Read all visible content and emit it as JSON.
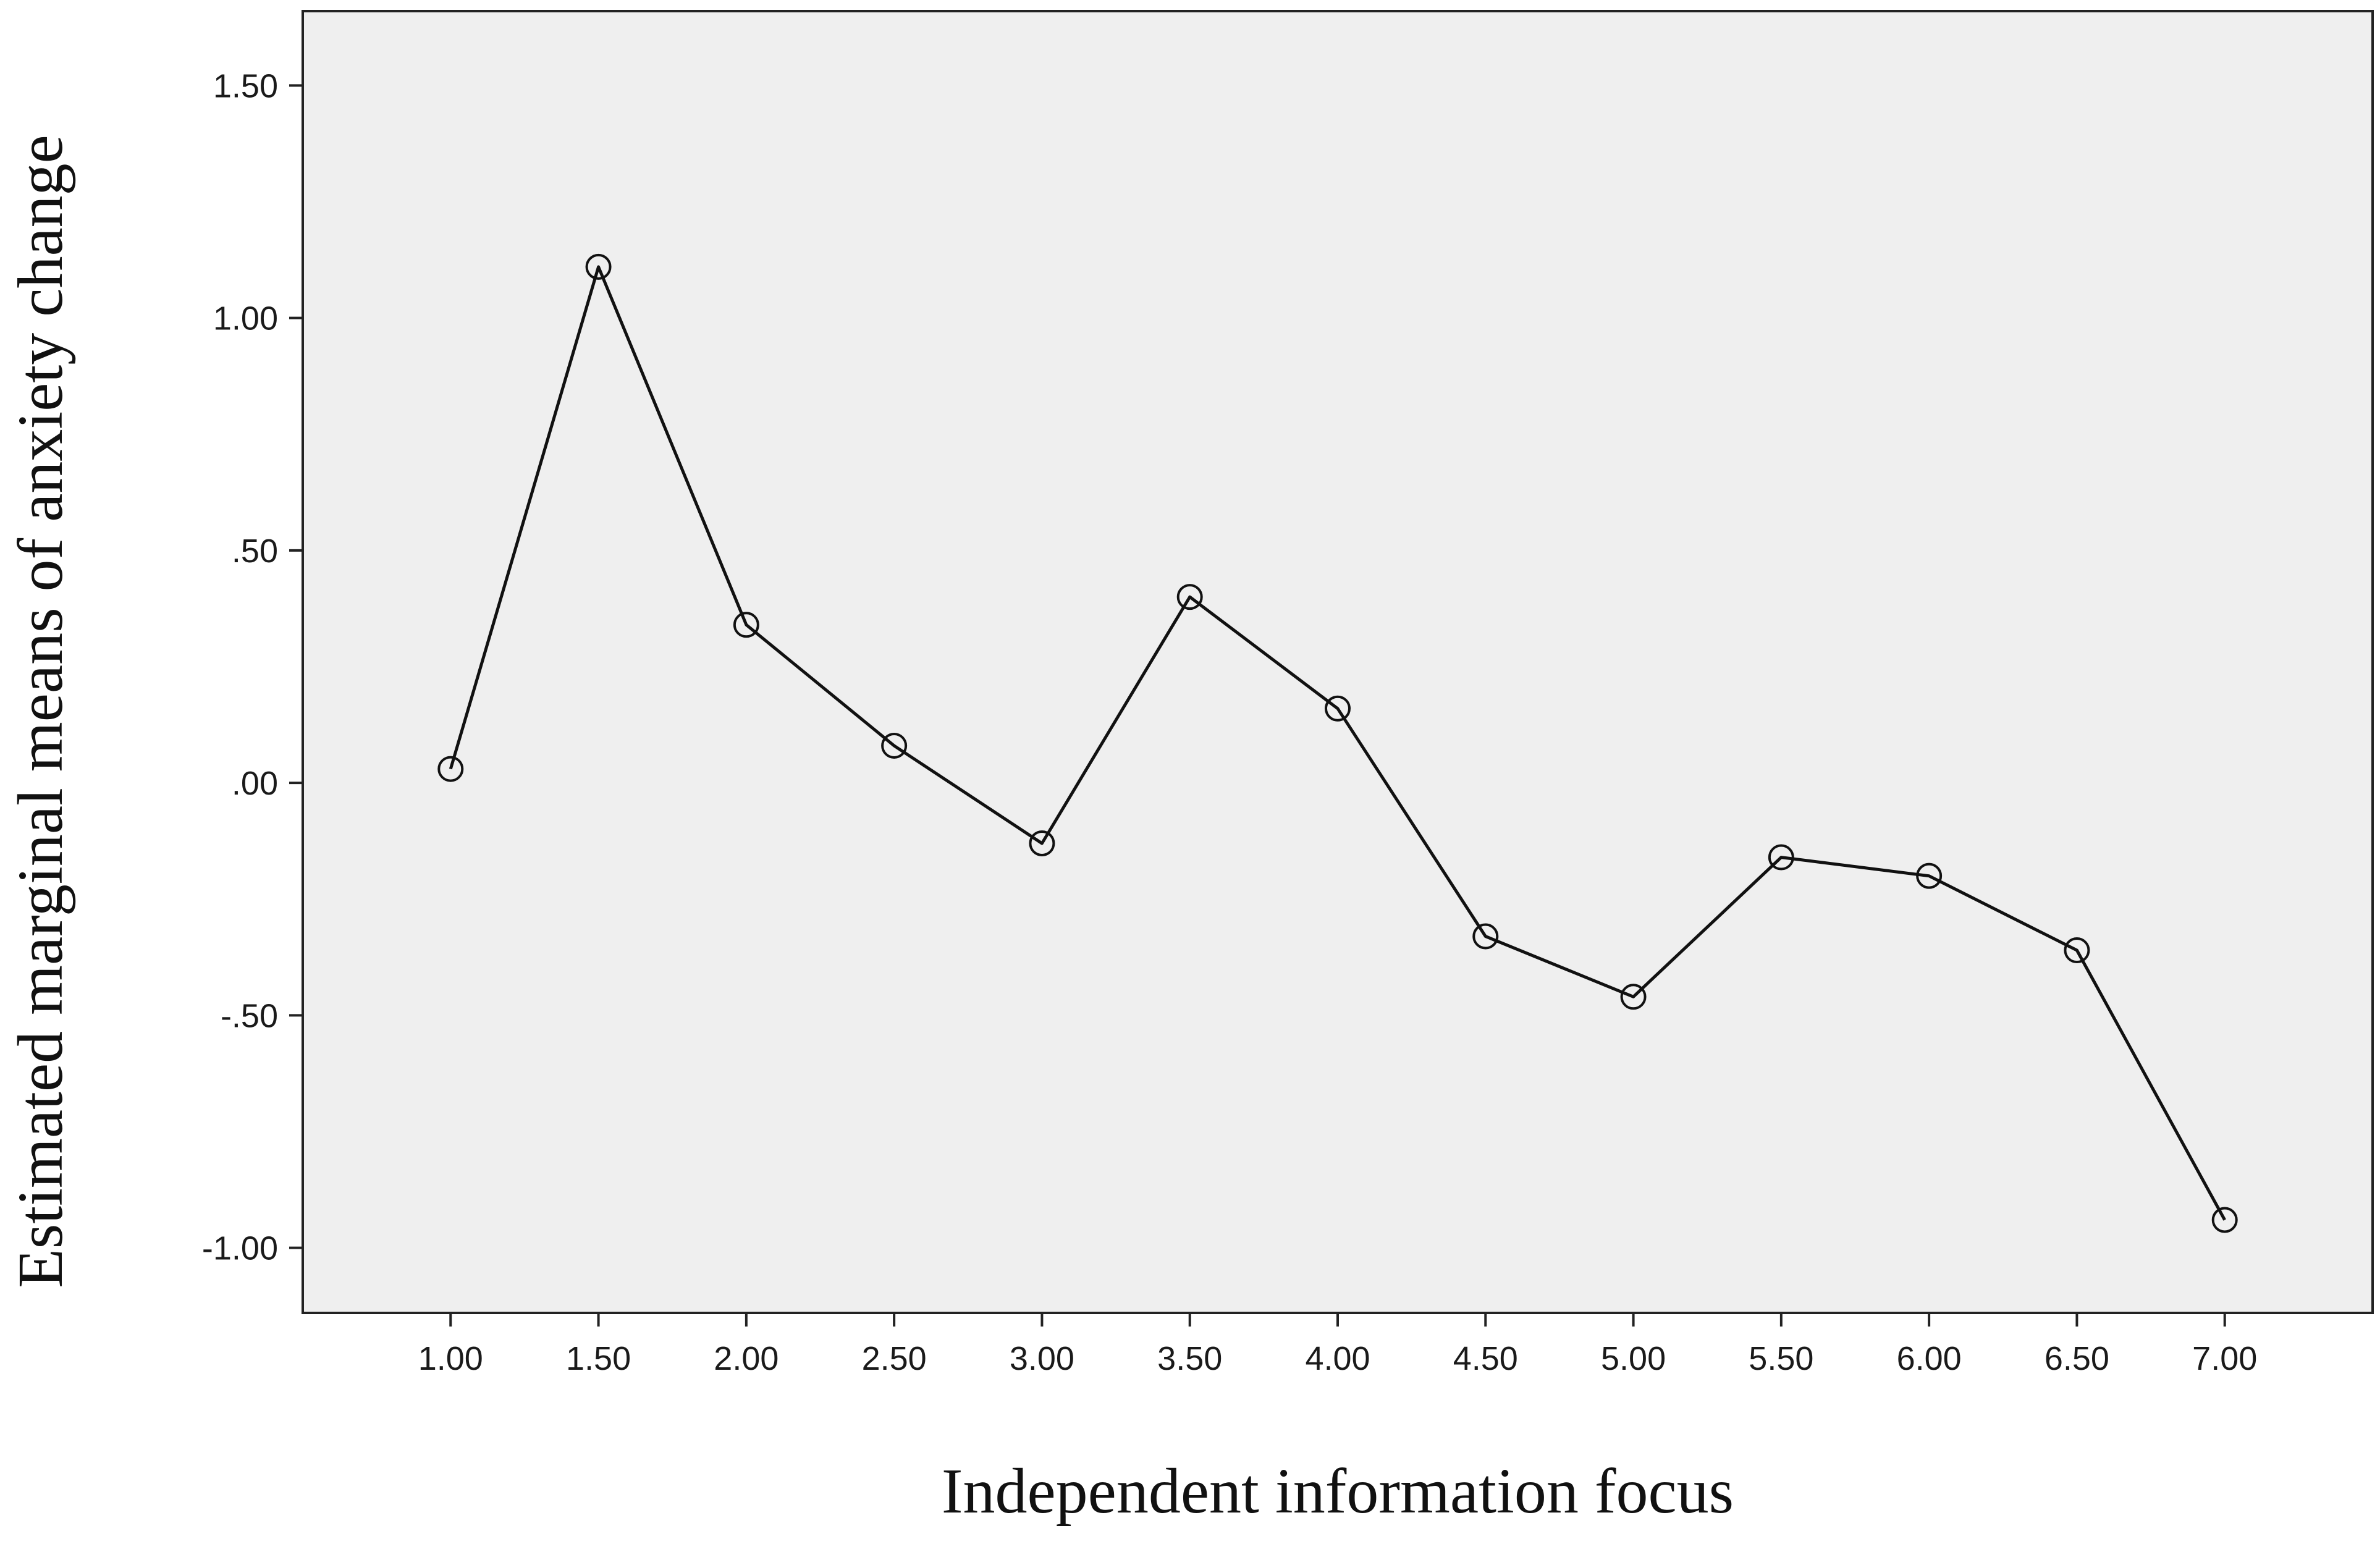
{
  "chart_data": {
    "type": "line",
    "title": "",
    "xlabel": "Independent information focus",
    "ylabel": "Estimated marginal means of anxiety change",
    "x": [
      1.0,
      1.5,
      2.0,
      2.5,
      3.0,
      3.5,
      4.0,
      4.5,
      5.0,
      5.5,
      6.0,
      6.5,
      7.0
    ],
    "x_tick_labels": [
      "1.00",
      "1.50",
      "2.00",
      "2.50",
      "3.00",
      "3.50",
      "4.00",
      "4.50",
      "5.00",
      "5.50",
      "6.00",
      "6.50",
      "7.00"
    ],
    "series": [
      {
        "values": [
          0.03,
          1.11,
          0.34,
          0.08,
          -0.13,
          0.4,
          0.16,
          -0.33,
          -0.46,
          -0.16,
          -0.2,
          -0.36,
          -0.94
        ]
      }
    ],
    "y_ticks": [
      1.5,
      1.0,
      0.5,
      0.0,
      -0.5,
      -1.0
    ],
    "y_tick_labels": [
      "1.50",
      "1.00",
      ".50",
      ".00",
      "-.50",
      "-1.00"
    ],
    "ylim": [
      -1.14,
      1.66
    ],
    "xlim": [
      0.5,
      7.5
    ],
    "grid": false,
    "legend": "none",
    "colors": {
      "plot_background": "#efefef",
      "line": "#111111",
      "frame": "#222222"
    },
    "marker": "open-circle"
  }
}
